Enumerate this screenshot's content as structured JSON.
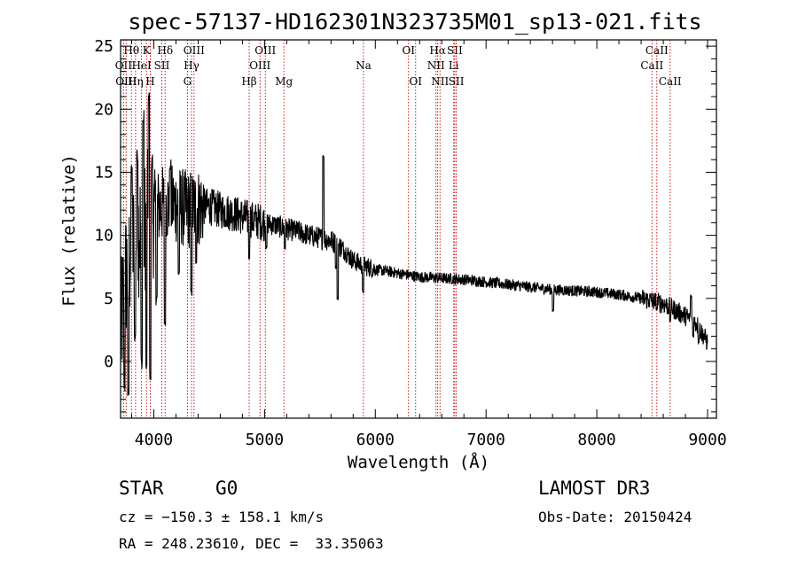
{
  "chart_data": {
    "type": "line",
    "title": "spec-57137-HD162301N323735M01_sp13-021.fits",
    "xlabel": "Wavelength (Å)",
    "ylabel": "Flux (relative)",
    "xlim": [
      3700,
      9080
    ],
    "ylim": [
      -4.5,
      25.5
    ],
    "xticks": [
      4000,
      5000,
      6000,
      7000,
      8000,
      9000
    ],
    "yticks": [
      0,
      5,
      10,
      15,
      20,
      25
    ],
    "grid": false,
    "series": [
      {
        "name": "flux",
        "anchors": [
          [
            3700,
            2.0
          ],
          [
            3740,
            6.5
          ],
          [
            3780,
            8.0
          ],
          [
            3820,
            9.5
          ],
          [
            3860,
            10.5
          ],
          [
            3900,
            10.5
          ],
          [
            3950,
            11.5
          ],
          [
            4000,
            12.0
          ],
          [
            4100,
            12.5
          ],
          [
            4200,
            12.5
          ],
          [
            4300,
            12.0
          ],
          [
            4400,
            12.2
          ],
          [
            4500,
            12.3
          ],
          [
            4600,
            12.0
          ],
          [
            4700,
            11.8
          ],
          [
            4800,
            11.5
          ],
          [
            4900,
            11.2
          ],
          [
            5000,
            11.0
          ],
          [
            5100,
            10.8
          ],
          [
            5200,
            10.5
          ],
          [
            5300,
            10.3
          ],
          [
            5400,
            10.0
          ],
          [
            5500,
            9.8
          ],
          [
            5600,
            9.6
          ],
          [
            5700,
            9.0
          ],
          [
            5800,
            8.0
          ],
          [
            5900,
            7.6
          ],
          [
            6000,
            7.3
          ],
          [
            6200,
            7.0
          ],
          [
            6400,
            6.7
          ],
          [
            6600,
            6.6
          ],
          [
            6800,
            6.5
          ],
          [
            7000,
            6.3
          ],
          [
            7200,
            6.1
          ],
          [
            7400,
            5.9
          ],
          [
            7600,
            5.7
          ],
          [
            7800,
            5.6
          ],
          [
            8000,
            5.5
          ],
          [
            8200,
            5.3
          ],
          [
            8400,
            5.0
          ],
          [
            8600,
            4.6
          ],
          [
            8800,
            3.6
          ],
          [
            8900,
            3.0
          ],
          [
            9000,
            1.5
          ]
        ],
        "features": [
          [
            3735,
            -2.0
          ],
          [
            3770,
            -2.5
          ],
          [
            3800,
            15.5
          ],
          [
            3830,
            2.0
          ],
          [
            3850,
            16.5
          ],
          [
            3889,
            0.0
          ],
          [
            3905,
            19.0
          ],
          [
            3933,
            -0.5
          ],
          [
            3955,
            21.0
          ],
          [
            3968,
            -1.0
          ],
          [
            3985,
            16.0
          ],
          [
            4025,
            5.0
          ],
          [
            4101,
            3.0
          ],
          [
            4150,
            15.5
          ],
          [
            4226,
            7.0
          ],
          [
            4340,
            5.5
          ],
          [
            4383,
            8.0
          ],
          [
            4861,
            8.2
          ],
          [
            5015,
            9.0
          ],
          [
            5183,
            9.0
          ],
          [
            5530,
            16.3
          ],
          [
            5645,
            7.5
          ],
          [
            5660,
            5.0
          ],
          [
            5890,
            5.5
          ],
          [
            7605,
            4.0
          ],
          [
            8542,
            4.2
          ],
          [
            8662,
            3.2
          ],
          [
            8850,
            5.2
          ],
          [
            8870,
            2.0
          ],
          [
            8920,
            1.5
          ]
        ]
      }
    ],
    "line_markers": [
      {
        "label": "Hθ",
        "wavelength": 3798,
        "row": 0
      },
      {
        "label": "K",
        "wavelength": 3934,
        "row": 0
      },
      {
        "label": "Hδ",
        "wavelength": 4102,
        "row": 0
      },
      {
        "label": "OIII",
        "wavelength": 4363,
        "row": 0
      },
      {
        "label": "OIII",
        "wavelength": 5007,
        "row": 0
      },
      {
        "label": "OI",
        "wavelength": 6300,
        "row": 0
      },
      {
        "label": "Hα",
        "wavelength": 6563,
        "row": 0
      },
      {
        "label": "SII",
        "wavelength": 6717,
        "row": 0
      },
      {
        "label": "CaII",
        "wavelength": 8542,
        "row": 0
      },
      {
        "label": "OII",
        "wavelength": 3727,
        "row": 1
      },
      {
        "label": "HeI",
        "wavelength": 3889,
        "row": 1
      },
      {
        "label": "SII",
        "wavelength": 4072,
        "row": 1
      },
      {
        "label": "Hγ",
        "wavelength": 4340,
        "row": 1
      },
      {
        "label": "OIII",
        "wavelength": 4959,
        "row": 1
      },
      {
        "label": "Na",
        "wavelength": 5893,
        "row": 1
      },
      {
        "label": "NII",
        "wavelength": 6548,
        "row": 1
      },
      {
        "label": "Li",
        "wavelength": 6708,
        "row": 1
      },
      {
        "label": "CaII",
        "wavelength": 8498,
        "row": 1
      },
      {
        "label": "OIII",
        "wavelength": 3750,
        "row": 2
      },
      {
        "label": "Hη",
        "wavelength": 3835,
        "row": 2
      },
      {
        "label": "H",
        "wavelength": 3968,
        "row": 2
      },
      {
        "label": "G",
        "wavelength": 4304,
        "row": 2
      },
      {
        "label": "Hβ",
        "wavelength": 4861,
        "row": 2
      },
      {
        "label": "Mg",
        "wavelength": 5175,
        "row": 2
      },
      {
        "label": "OI",
        "wavelength": 6364,
        "row": 2
      },
      {
        "label": "NII",
        "wavelength": 6584,
        "row": 2
      },
      {
        "label": "SII",
        "wavelength": 6731,
        "row": 2
      },
      {
        "label": "CaII",
        "wavelength": 8662,
        "row": 2
      }
    ],
    "marker_color": "#cc0000",
    "line_color": "#000000"
  },
  "info": {
    "object_class": "STAR",
    "subclass": "G0",
    "survey": "LAMOST DR3",
    "redshift": "cz = −150.3 ± 158.1 km/s",
    "obs_date": "Obs-Date: 20150424",
    "coords": "RA = 248.23610, DEC =  33.35063"
  }
}
